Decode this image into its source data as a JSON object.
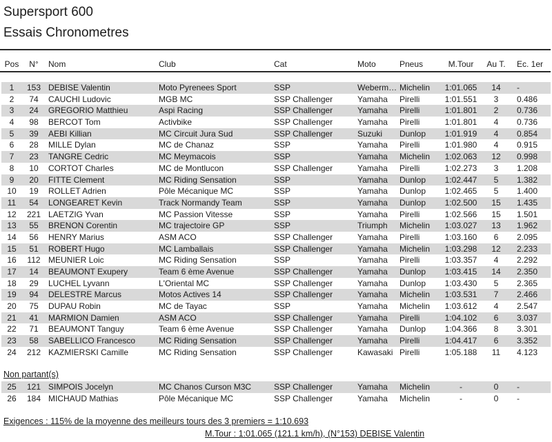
{
  "page": {
    "title_line1": "Supersport 600",
    "title_line2": "Essais Chronometres"
  },
  "table": {
    "headers": {
      "pos": "Pos",
      "num": "N°",
      "nom": "Nom",
      "club": "Club",
      "cat": "Cat",
      "moto": "Moto",
      "pneus": "Pneus",
      "mtour": "M.Tour",
      "aut": "Au T.",
      "ec": "Ec. 1er"
    },
    "rows": [
      {
        "pos": "1",
        "num": "153",
        "nom": "DEBISE Valentin",
        "club": "Moto Pyrenees Sport",
        "cat": "SSP",
        "moto": "Weberm…",
        "pneus": "Michelin",
        "mtour": "1:01.065",
        "aut": "14",
        "ec": "-"
      },
      {
        "pos": "2",
        "num": "74",
        "nom": "CAUCHI Ludovic",
        "club": "MGB MC",
        "cat": "SSP Challenger",
        "moto": "Yamaha",
        "pneus": "Pirelli",
        "mtour": "1:01.551",
        "aut": "3",
        "ec": "0.486"
      },
      {
        "pos": "3",
        "num": "24",
        "nom": "GREGORIO Matthieu",
        "club": "Aspi Racing",
        "cat": "SSP Challenger",
        "moto": "Yamaha",
        "pneus": "Pirelli",
        "mtour": "1:01.801",
        "aut": "2",
        "ec": "0.736"
      },
      {
        "pos": "4",
        "num": "98",
        "nom": "BERCOT Tom",
        "club": "Activbike",
        "cat": "SSP Challenger",
        "moto": "Yamaha",
        "pneus": "Pirelli",
        "mtour": "1:01.801",
        "aut": "4",
        "ec": "0.736"
      },
      {
        "pos": "5",
        "num": "39",
        "nom": "AEBI Killian",
        "club": "MC Circuit Jura Sud",
        "cat": "SSP Challenger",
        "moto": "Suzuki",
        "pneus": "Dunlop",
        "mtour": "1:01.919",
        "aut": "4",
        "ec": "0.854"
      },
      {
        "pos": "6",
        "num": "28",
        "nom": "MILLE Dylan",
        "club": "MC de Chanaz",
        "cat": "SSP",
        "moto": "Yamaha",
        "pneus": "Pirelli",
        "mtour": "1:01.980",
        "aut": "4",
        "ec": "0.915"
      },
      {
        "pos": "7",
        "num": "23",
        "nom": "TANGRE Cedric",
        "club": "MC Meymacois",
        "cat": "SSP",
        "moto": "Yamaha",
        "pneus": "Michelin",
        "mtour": "1:02.063",
        "aut": "12",
        "ec": "0.998"
      },
      {
        "pos": "8",
        "num": "10",
        "nom": "CORTOT Charles",
        "club": "MC de Montlucon",
        "cat": "SSP Challenger",
        "moto": "Yamaha",
        "pneus": "Pirelli",
        "mtour": "1:02.273",
        "aut": "3",
        "ec": "1.208"
      },
      {
        "pos": "9",
        "num": "20",
        "nom": "FITTE Clement",
        "club": "MC Riding Sensation",
        "cat": "SSP",
        "moto": "Yamaha",
        "pneus": "Dunlop",
        "mtour": "1:02.447",
        "aut": "5",
        "ec": "1.382"
      },
      {
        "pos": "10",
        "num": "19",
        "nom": "ROLLET Adrien",
        "club": "Pôle Mécanique MC",
        "cat": "SSP",
        "moto": "Yamaha",
        "pneus": "Dunlop",
        "mtour": "1:02.465",
        "aut": "5",
        "ec": "1.400"
      },
      {
        "pos": "11",
        "num": "54",
        "nom": "LONGEARET Kevin",
        "club": "Track Normandy Team",
        "cat": "SSP",
        "moto": "Yamaha",
        "pneus": "Dunlop",
        "mtour": "1:02.500",
        "aut": "15",
        "ec": "1.435"
      },
      {
        "pos": "12",
        "num": "221",
        "nom": "LAETZIG Yvan",
        "club": "MC Passion Vitesse",
        "cat": "SSP",
        "moto": "Yamaha",
        "pneus": "Pirelli",
        "mtour": "1:02.566",
        "aut": "15",
        "ec": "1.501"
      },
      {
        "pos": "13",
        "num": "55",
        "nom": "BRENON Corentin",
        "club": "MC trajectoire GP",
        "cat": "SSP",
        "moto": "Triumph",
        "pneus": "Michelin",
        "mtour": "1:03.027",
        "aut": "13",
        "ec": "1.962"
      },
      {
        "pos": "14",
        "num": "56",
        "nom": "HENRY Marius",
        "club": "ASM ACO",
        "cat": "SSP Challenger",
        "moto": "Yamaha",
        "pneus": "Pirelli",
        "mtour": "1:03.160",
        "aut": "6",
        "ec": "2.095"
      },
      {
        "pos": "15",
        "num": "51",
        "nom": "ROBERT Hugo",
        "club": "MC Lamballais",
        "cat": "SSP Challenger",
        "moto": "Yamaha",
        "pneus": "Michelin",
        "mtour": "1:03.298",
        "aut": "12",
        "ec": "2.233"
      },
      {
        "pos": "16",
        "num": "112",
        "nom": "MEUNIER Loic",
        "club": "MC Riding Sensation",
        "cat": "SSP",
        "moto": "Yamaha",
        "pneus": "Pirelli",
        "mtour": "1:03.357",
        "aut": "4",
        "ec": "2.292"
      },
      {
        "pos": "17",
        "num": "14",
        "nom": "BEAUMONT Exupery",
        "club": "Team 6 ème Avenue",
        "cat": "SSP Challenger",
        "moto": "Yamaha",
        "pneus": "Dunlop",
        "mtour": "1:03.415",
        "aut": "14",
        "ec": "2.350"
      },
      {
        "pos": "18",
        "num": "29",
        "nom": "LUCHEL Lyvann",
        "club": "L'Oriental MC",
        "cat": "SSP Challenger",
        "moto": "Yamaha",
        "pneus": "Dunlop",
        "mtour": "1:03.430",
        "aut": "5",
        "ec": "2.365"
      },
      {
        "pos": "19",
        "num": "94",
        "nom": "DELESTRE Marcus",
        "club": "Motos Actives 14",
        "cat": "SSP Challenger",
        "moto": "Yamaha",
        "pneus": "Michelin",
        "mtour": "1:03.531",
        "aut": "7",
        "ec": "2.466"
      },
      {
        "pos": "20",
        "num": "75",
        "nom": "DUPAU Robin",
        "club": "MC de Tayac",
        "cat": "SSP",
        "moto": "Yamaha",
        "pneus": "Michelin",
        "mtour": "1:03.612",
        "aut": "4",
        "ec": "2.547"
      },
      {
        "pos": "21",
        "num": "41",
        "nom": "MARMION Damien",
        "club": "ASM ACO",
        "cat": "SSP Challenger",
        "moto": "Yamaha",
        "pneus": "Pirelli",
        "mtour": "1:04.102",
        "aut": "6",
        "ec": "3.037"
      },
      {
        "pos": "22",
        "num": "71",
        "nom": "BEAUMONT Tanguy",
        "club": "Team 6 ème Avenue",
        "cat": "SSP Challenger",
        "moto": "Yamaha",
        "pneus": "Dunlop",
        "mtour": "1:04.366",
        "aut": "8",
        "ec": "3.301"
      },
      {
        "pos": "23",
        "num": "58",
        "nom": "SABELLICO Francesco",
        "club": "MC Riding Sensation",
        "cat": "SSP Challenger",
        "moto": "Yamaha",
        "pneus": "Pirelli",
        "mtour": "1:04.417",
        "aut": "6",
        "ec": "3.352"
      },
      {
        "pos": "24",
        "num": "212",
        "nom": "KAZMIERSKI Camille",
        "club": "MC Riding Sensation",
        "cat": "SSP Challenger",
        "moto": "Kawasaki",
        "pneus": "Pirelli",
        "mtour": "1:05.188",
        "aut": "11",
        "ec": "4.123"
      }
    ],
    "non_partants_label": "Non partant(s)",
    "non_partant_rows": [
      {
        "pos": "25",
        "num": "121",
        "nom": "SIMPOIS Jocelyn",
        "club": "MC Chanos Curson M3C",
        "cat": "SSP Challenger",
        "moto": "Yamaha",
        "pneus": "Michelin",
        "mtour": "-",
        "aut": "0",
        "ec": "-"
      },
      {
        "pos": "26",
        "num": "184",
        "nom": "MICHAUD Mathias",
        "club": "Pôle Mécanique MC",
        "cat": "SSP Challenger",
        "moto": "Yamaha",
        "pneus": "Michelin",
        "mtour": "-",
        "aut": "0",
        "ec": "-"
      }
    ]
  },
  "footer": {
    "exigences": "Exigences : 115% de la moyenne des meilleurs tours des 3 premiers = 1:10.693",
    "best_lap": "M.Tour : 1:01.065 (121.1 km/h), (N°153) DEBISE Valentin"
  },
  "colors": {
    "stripe": "#d9d9d9",
    "text": "#1c1c1c",
    "rule": "#2a2a2a"
  }
}
